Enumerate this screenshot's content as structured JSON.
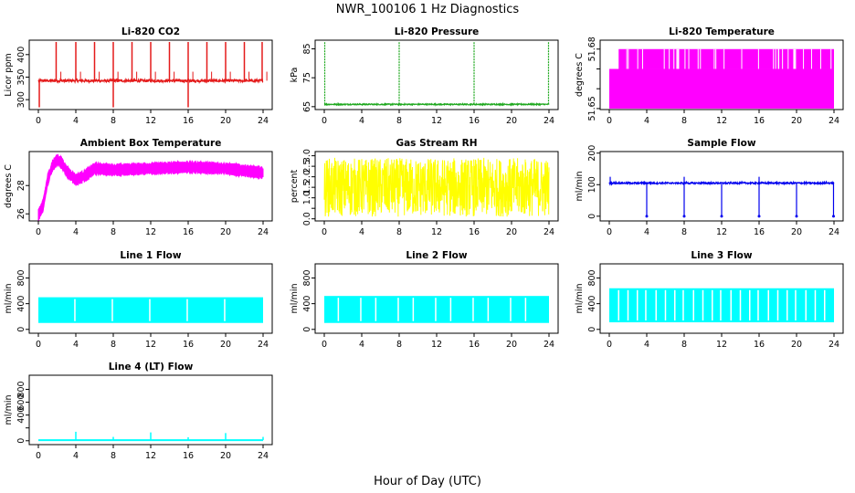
{
  "page": {
    "title": "NWR_100106  1 Hz Diagnostics",
    "xlabel": "Hour of Day (UTC)"
  },
  "colors": {
    "red": "#e41a1a",
    "green": "#1fa81f",
    "magenta": "#ff00ff",
    "yellow": "#ffff00",
    "blue": "#0000ee",
    "cyan": "#00ffff"
  },
  "chart_data": [
    {
      "type": "line",
      "title": "Li-820 CO2",
      "ylabel": "Licor ppm",
      "color": "red",
      "xlim": [
        0,
        24
      ],
      "xticks": [
        "0",
        "4",
        "8",
        "12",
        "16",
        "20",
        "24"
      ],
      "ylim": [
        278,
        432
      ],
      "yticks": [
        300,
        350,
        400
      ],
      "ytick_labels": [
        "300",
        "350",
        "400"
      ],
      "pattern": "co2",
      "baseline": 342,
      "spike_hours": [
        1.9,
        4.0,
        6.0,
        8.0,
        10.0,
        12.0,
        14.0,
        16.0,
        18.0,
        20.0,
        22.0,
        23.9
      ],
      "spike_peak": 428,
      "dip_hours": [
        0.1,
        8.0,
        16.0
      ],
      "dip_min": 283
    },
    {
      "type": "line",
      "title": "Li-820 Pressure",
      "ylabel": "kPa",
      "color": "green",
      "xlim": [
        0,
        24
      ],
      "xticks": [
        "0",
        "4",
        "8",
        "12",
        "16",
        "20",
        "24"
      ],
      "ylim": [
        64,
        88
      ],
      "yticks": [
        65,
        75,
        85
      ],
      "ytick_labels": [
        "65",
        "75",
        "85"
      ],
      "pattern": "pressure",
      "baseline": 65.8,
      "spike_hours": [
        0.05,
        8.0,
        16.0,
        23.95
      ],
      "spike_peak": 87.5
    },
    {
      "type": "line",
      "title": "Li-820 Temperature",
      "ylabel": "degrees C",
      "color": "magenta",
      "xlim": [
        0,
        24
      ],
      "xticks": [
        "0",
        "4",
        "8",
        "12",
        "16",
        "20",
        "24"
      ],
      "ylim": [
        51.6495,
        51.6845
      ],
      "yticks": [
        51.65,
        51.66,
        51.67,
        51.68
      ],
      "ytick_labels": [
        "51.65",
        "",
        "",
        "51.68"
      ],
      "pattern": "temperature",
      "low": 51.65,
      "mid": 51.67,
      "high": 51.68
    },
    {
      "type": "line",
      "title": "Ambient Box Temperature",
      "ylabel": "degrees C",
      "color": "magenta",
      "xlim": [
        0,
        24
      ],
      "xticks": [
        "0",
        "4",
        "8",
        "12",
        "16",
        "20",
        "24"
      ],
      "ylim": [
        25.5,
        30.4
      ],
      "yticks": [
        26,
        28
      ],
      "ytick_labels": [
        "26",
        "28"
      ],
      "pattern": "ambient",
      "curve": [
        [
          0,
          25.9
        ],
        [
          0.5,
          26.6
        ],
        [
          1,
          28.4
        ],
        [
          1.5,
          29.4
        ],
        [
          2,
          29.8
        ],
        [
          2.5,
          29.6
        ],
        [
          3,
          29.0
        ],
        [
          4,
          28.4
        ],
        [
          5,
          28.7
        ],
        [
          6,
          29.2
        ],
        [
          8,
          29.1
        ],
        [
          12,
          29.2
        ],
        [
          16,
          29.3
        ],
        [
          20,
          29.2
        ],
        [
          24,
          28.9
        ]
      ],
      "noise": 0.45
    },
    {
      "type": "line",
      "title": "Gas Stream RH",
      "ylabel": "percent",
      "color": "yellow",
      "xlim": [
        0,
        24
      ],
      "xticks": [
        "0",
        "4",
        "8",
        "12",
        "16",
        "20",
        "24"
      ],
      "ylim": [
        -0.1,
        3.2
      ],
      "yticks": [
        0.0,
        0.5,
        1.0,
        1.5,
        2.0,
        2.5,
        3.0
      ],
      "ytick_labels": [
        "0.0",
        "",
        "1.0",
        "1.5",
        "2.0",
        "2.5",
        "3.0"
      ],
      "pattern": "rh",
      "low": 0.1,
      "high": 2.9
    },
    {
      "type": "line",
      "title": "Sample Flow",
      "ylabel": "ml/min",
      "color": "blue",
      "xlim": [
        0,
        24
      ],
      "xticks": [
        "0",
        "4",
        "8",
        "12",
        "16",
        "20",
        "24"
      ],
      "ylim": [
        -15,
        205
      ],
      "yticks": [
        0,
        100,
        200
      ],
      "ytick_labels": [
        "0",
        "100",
        "200"
      ],
      "pattern": "sample",
      "baseline": 105,
      "dip_hours": [
        4.0,
        8.0,
        12.0,
        16.0,
        20.0,
        23.95
      ],
      "spike_hours": [
        0.1,
        8.0,
        16.0
      ],
      "spike_peak": 125
    },
    {
      "type": "line",
      "title": "Line 1 Flow",
      "ylabel": "ml/min",
      "color": "cyan",
      "xlim": [
        0,
        24
      ],
      "xticks": [
        "0",
        "4",
        "8",
        "12",
        "16",
        "20",
        "24"
      ],
      "ylim": [
        -60,
        1020
      ],
      "yticks": [
        0,
        400,
        800
      ],
      "ytick_labels": [
        "0",
        "400",
        "800"
      ],
      "pattern": "band",
      "low": 100,
      "high": 500,
      "gap_hours": [
        3.9,
        7.9,
        11.9,
        15.9,
        19.9
      ]
    },
    {
      "type": "line",
      "title": "Line 2 Flow",
      "ylabel": "ml/min",
      "color": "cyan",
      "xlim": [
        0,
        24
      ],
      "xticks": [
        "0",
        "4",
        "8",
        "12",
        "16",
        "20",
        "24"
      ],
      "ylim": [
        -60,
        1020
      ],
      "yticks": [
        0,
        400,
        800
      ],
      "ytick_labels": [
        "0",
        "400",
        "800"
      ],
      "pattern": "band",
      "low": 100,
      "high": 520,
      "gap_hours": [
        1.5,
        3.9,
        5.5,
        7.9,
        9.5,
        11.9,
        13.5,
        15.9,
        17.5,
        19.9,
        21.5
      ]
    },
    {
      "type": "line",
      "title": "Line 3 Flow",
      "ylabel": "ml/min",
      "color": "cyan",
      "xlim": [
        0,
        24
      ],
      "xticks": [
        "0",
        "4",
        "8",
        "12",
        "16",
        "20",
        "24"
      ],
      "ylim": [
        -60,
        1020
      ],
      "yticks": [
        0,
        400,
        800
      ],
      "ytick_labels": [
        "0",
        "400",
        "800"
      ],
      "pattern": "band",
      "low": 110,
      "high": 640,
      "gap_hours": [
        1.0,
        2.0,
        3.0,
        3.9,
        5.0,
        6.0,
        7.0,
        7.9,
        9.0,
        10.0,
        11.0,
        11.9,
        13.0,
        14.0,
        15.0,
        15.9,
        17.0,
        18.0,
        19.0,
        19.9,
        21.0,
        22.0,
        23.0
      ]
    },
    {
      "type": "line",
      "title": "Line 4 (LT) Flow",
      "ylabel": "ml/min",
      "color": "cyan",
      "xlim": [
        0,
        24
      ],
      "xticks": [
        "0",
        "4",
        "8",
        "12",
        "16",
        "20",
        "24"
      ],
      "ylim": [
        -60,
        1020
      ],
      "yticks": [
        0,
        200,
        400,
        600,
        800
      ],
      "ytick_labels": [
        "0",
        "",
        "400",
        "600",
        "800"
      ],
      "pattern": "line4",
      "baseline": 10,
      "spikes": [
        [
          4.0,
          140
        ],
        [
          8.0,
          60
        ],
        [
          12.0,
          130
        ],
        [
          16.0,
          55
        ],
        [
          20.0,
          120
        ],
        [
          24.0,
          60
        ]
      ]
    }
  ]
}
